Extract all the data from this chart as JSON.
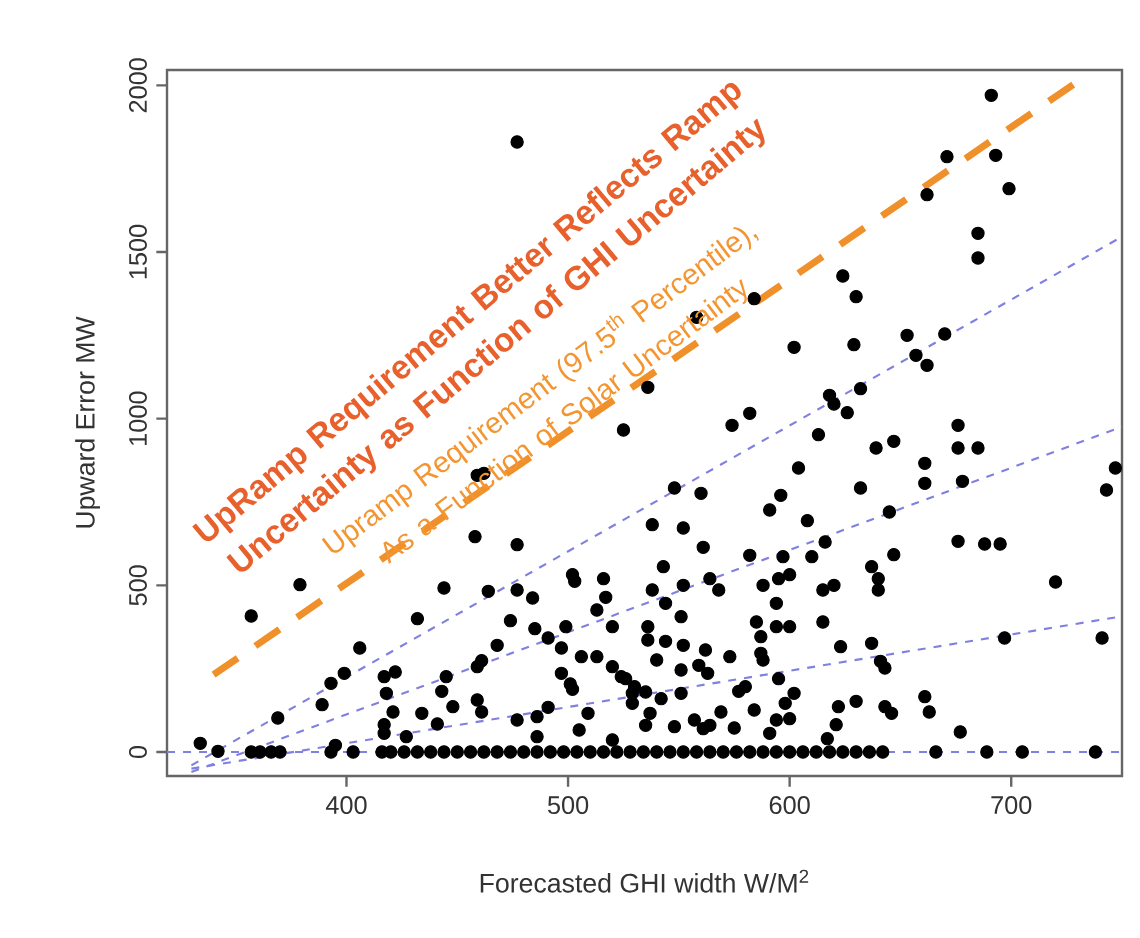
{
  "chart_data": {
    "type": "scatter",
    "xlabel": "Forecasted GHI width W/M$^{2}$",
    "ylabel": "Upward Error MW",
    "xlim": [
      319,
      750
    ],
    "ylim": [
      -72,
      2046
    ],
    "xticks": [
      400,
      500,
      600,
      700
    ],
    "yticks": [
      0,
      500,
      1000,
      1500,
      2000
    ],
    "grid": false,
    "marker": "circle",
    "annotations": [
      "UpRamp Requirement Better Reflects Ramp Uncertainty as Function of GHI Uncertainty",
      "Upramp Requirement (97.5$^{th}$ Percentile), As a Function of Solar Uncertainty"
    ],
    "ref_lines": [
      {
        "axis": "y",
        "value": 0,
        "color": "#8080e0",
        "line_style": "dashed"
      }
    ],
    "series": [
      {
        "type": "scatter",
        "color": "#000000",
        "x": [
          477,
          691,
          671,
          693,
          699,
          662,
          685,
          685,
          624,
          630,
          584,
          558,
          653,
          670,
          602,
          629,
          657,
          662,
          632,
          536,
          618,
          620,
          626,
          582,
          525,
          462,
          459,
          458,
          477,
          379,
          357,
          444,
          464,
          477,
          484,
          432,
          474,
          485,
          491,
          497,
          468,
          406,
          499,
          461,
          459,
          399,
          393,
          417,
          422,
          418,
          445,
          443,
          389,
          448,
          421,
          434,
          459,
          461,
          441,
          369,
          417,
          417,
          427,
          395,
          334,
          342,
          491,
          497,
          501,
          502,
          502,
          503,
          506,
          513,
          516,
          517,
          513,
          520,
          520,
          526,
          529,
          505,
          509,
          486,
          477,
          486,
          520,
          574,
          613,
          639,
          647,
          676,
          676,
          685,
          661,
          661,
          678,
          747,
          743,
          604,
          548,
          560,
          632,
          596,
          591,
          645,
          538,
          552,
          608,
          676,
          688,
          695,
          561,
          582,
          597,
          610,
          616,
          647,
          637,
          543,
          600,
          595,
          588,
          564,
          568,
          552,
          538,
          615,
          620,
          640,
          640,
          720,
          544,
          594,
          551,
          585,
          594,
          600,
          615,
          536,
          587,
          536,
          544,
          552,
          562,
          573,
          587,
          588,
          623,
          637,
          641,
          643,
          697,
          741,
          540,
          551,
          559,
          563,
          524,
          530,
          535,
          542,
          551,
          529,
          577,
          580,
          584,
          595,
          602,
          598,
          594,
          600,
          591,
          569,
          564,
          561,
          557,
          548,
          575,
          535,
          537,
          622,
          630,
          621,
          617,
          643,
          646,
          661,
          663,
          677,
          357,
          361,
          366,
          370,
          393,
          403,
          416,
          420,
          426,
          432,
          438,
          444,
          450,
          456,
          462,
          468,
          474,
          480,
          486,
          492,
          498,
          504,
          510,
          516,
          522,
          528,
          534,
          540,
          546,
          552,
          558,
          564,
          570,
          576,
          582,
          588,
          594,
          600,
          606,
          612,
          618,
          624,
          630,
          636,
          642,
          666,
          689,
          705,
          738
        ],
        "values": [
          1830,
          1970,
          1786,
          1790,
          1690,
          1672,
          1556,
          1482,
          1428,
          1366,
          1360,
          1304,
          1250,
          1254,
          1214,
          1222,
          1190,
          1160,
          1090,
          1094,
          1070,
          1044,
          1018,
          1016,
          966,
          836,
          830,
          646,
          622,
          502,
          408,
          492,
          482,
          486,
          462,
          400,
          394,
          370,
          342,
          312,
          320,
          312,
          376,
          274,
          256,
          236,
          206,
          226,
          240,
          176,
          226,
          182,
          142,
          136,
          120,
          116,
          156,
          120,
          84,
          102,
          82,
          56,
          46,
          20,
          26,
          2,
          134,
          236,
          204,
          188,
          532,
          512,
          286,
          286,
          520,
          464,
          426,
          376,
          256,
          220,
          176,
          66,
          116,
          106,
          96,
          46,
          36,
          980,
          952,
          912,
          932,
          980,
          912,
          912,
          866,
          806,
          812,
          852,
          786,
          852,
          792,
          776,
          792,
          770,
          726,
          720,
          682,
          672,
          694,
          632,
          624,
          624,
          614,
          590,
          586,
          586,
          630,
          592,
          556,
          556,
          532,
          520,
          500,
          520,
          486,
          500,
          486,
          486,
          500,
          520,
          486,
          510,
          446,
          446,
          406,
          390,
          376,
          376,
          390,
          376,
          346,
          336,
          332,
          320,
          306,
          286,
          296,
          276,
          316,
          326,
          272,
          252,
          342,
          342,
          276,
          246,
          260,
          236,
          226,
          196,
          180,
          160,
          176,
          146,
          182,
          196,
          126,
          220,
          176,
          146,
          96,
          100,
          56,
          120,
          80,
          70,
          96,
          76,
          72,
          80,
          116,
          136,
          152,
          82,
          40,
          136,
          116,
          166,
          120,
          60,
          0,
          0,
          0,
          0,
          0,
          0,
          0,
          0,
          0,
          0,
          0,
          0,
          0,
          0,
          0,
          0,
          0,
          0,
          0,
          0,
          0,
          0,
          0,
          0,
          0,
          0,
          0,
          0,
          0,
          0,
          0,
          0,
          0,
          0,
          0,
          0,
          0,
          0,
          0,
          0,
          0,
          0,
          0,
          0,
          0,
          0,
          0,
          0,
          0
        ]
      },
      {
        "type": "line",
        "color": "#8080e0",
        "line_style": "dashed",
        "marker": "none",
        "x": [
          330,
          750
        ],
        "values": [
          -40,
          1546
        ]
      },
      {
        "type": "line",
        "color": "#8080e0",
        "line_style": "dashed",
        "marker": "none",
        "x": [
          330,
          750
        ],
        "values": [
          -60,
          976
        ]
      },
      {
        "type": "line",
        "color": "#8080e0",
        "line_style": "dashed",
        "marker": "none",
        "x": [
          330,
          750
        ],
        "values": [
          -50,
          407
        ]
      },
      {
        "type": "line",
        "color": "#f0902a",
        "line_style": "dashed",
        "marker": "none",
        "x": [
          340,
          731
        ],
        "values": [
          232,
          2016
        ]
      }
    ]
  }
}
